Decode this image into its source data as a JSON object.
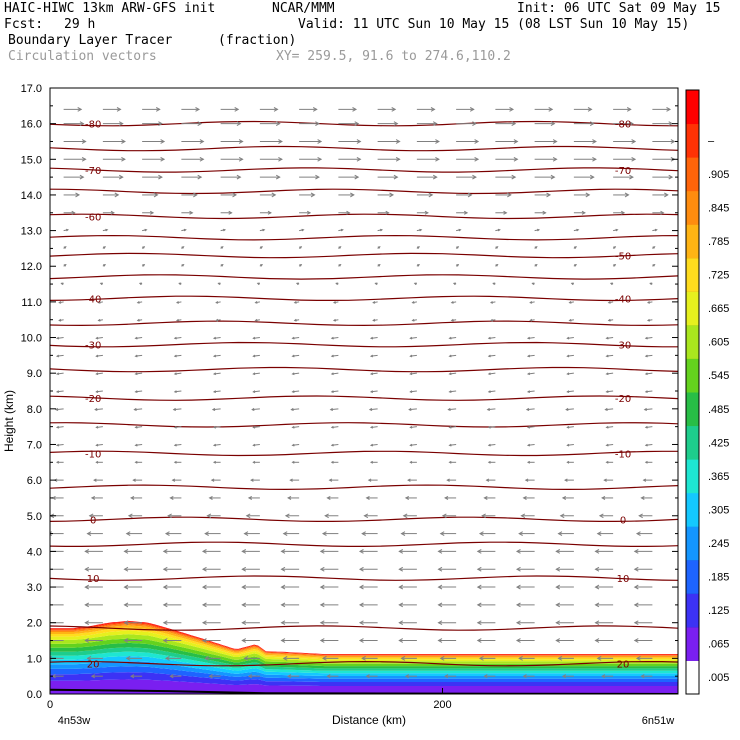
{
  "header": {
    "model": "HAIC-HIWC 13km ARW-GFS init",
    "org": "NCAR/MMM",
    "init": "Init: 06 UTC Sat 09 May 15",
    "fcst_label": "Fcst:",
    "fcst_value": "29 h",
    "valid": "Valid: 11 UTC Sun 10 May 15 (08 LST Sun 10 May 15)",
    "field": "Boundary Layer Tracer",
    "field_units": "(fraction)",
    "overlay": "Circulation vectors",
    "xy": "XY= 259.5, 91.6 to 274.6,110.2"
  },
  "chart_data": {
    "type": "heatmap",
    "title": "Boundary Layer Tracer",
    "xlabel": "Distance (km)",
    "ylabel": "Height (km)",
    "xlim": [
      0,
      320
    ],
    "ylim": [
      0,
      17
    ],
    "x_ticks": [
      0,
      200
    ],
    "x_tick_labels": [
      "0",
      "200"
    ],
    "x_end_labels": [
      "4n53w",
      "6n51w"
    ],
    "y_ticks": [
      0,
      1,
      2,
      3,
      4,
      5,
      6,
      7,
      8,
      9,
      10,
      11,
      12,
      13,
      14,
      15,
      16,
      17
    ],
    "y_tick_labels": [
      "0.0",
      "1.0",
      "2.0",
      "3.0",
      "4.0",
      "5.0",
      "6.0",
      "7.0",
      "8.0",
      "9.0",
      "10.0",
      "11.0",
      "12.0",
      "13.0",
      "14.0",
      "15.0",
      "16.0",
      "17.0"
    ],
    "colorbar": {
      "labels": [
        ".005",
        ".065",
        ".125",
        ".185",
        ".245",
        ".305",
        ".365",
        ".425",
        ".485",
        ".545",
        ".605",
        ".665",
        ".725",
        ".785",
        ".845",
        ".905",
        "–"
      ],
      "colors": [
        "#ffffff",
        "#7a1ff0",
        "#3c32f5",
        "#1e64ff",
        "#1496ff",
        "#14c8ff",
        "#1ee6d2",
        "#1ecd8c",
        "#28be46",
        "#64d21e",
        "#aae61e",
        "#e6f01e",
        "#ffdc1e",
        "#ffb414",
        "#ff8c0f",
        "#ff640a",
        "#ff3205",
        "#ff0000"
      ]
    },
    "tracer_top_km": [
      [
        0,
        1.85
      ],
      [
        12,
        1.85
      ],
      [
        20,
        1.9
      ],
      [
        30,
        2.0
      ],
      [
        40,
        2.05
      ],
      [
        50,
        2.0
      ],
      [
        60,
        1.85
      ],
      [
        75,
        1.6
      ],
      [
        95,
        1.25
      ],
      [
        105,
        1.4
      ],
      [
        110,
        1.2
      ],
      [
        120,
        1.18
      ],
      [
        140,
        1.12
      ],
      [
        320,
        1.12
      ]
    ],
    "temperature_contours": {
      "units": "C",
      "labeled": [
        {
          "value": -80,
          "height_km": 16.0,
          "labels": [
            "-80",
            "-80"
          ]
        },
        {
          "value": -70,
          "height_km": 14.7,
          "labels": [
            "-70",
            "-70"
          ]
        },
        {
          "value": -60,
          "height_km": 13.4,
          "labels": [
            "-60"
          ]
        },
        {
          "value": -50,
          "height_km": 12.3,
          "labels": [
            "-50"
          ]
        },
        {
          "value": -40,
          "height_km": 11.1,
          "labels": [
            "-40",
            "-40"
          ]
        },
        {
          "value": -30,
          "height_km": 9.8,
          "labels": [
            "-30",
            "-30"
          ]
        },
        {
          "value": -20,
          "height_km": 8.3,
          "labels": [
            "-20",
            "-20"
          ]
        },
        {
          "value": -10,
          "height_km": 6.75,
          "labels": [
            "-10",
            "-10"
          ]
        },
        {
          "value": 0,
          "height_km": 4.9,
          "labels": [
            "0",
            "0"
          ]
        },
        {
          "value": 10,
          "height_km": 3.25,
          "labels": [
            "10",
            "10"
          ]
        },
        {
          "value": 20,
          "height_km": 0.85,
          "labels": [
            "20",
            "20"
          ]
        }
      ],
      "unlabeled_heights_km": [
        15.3,
        14.1,
        12.8,
        11.7,
        10.4,
        9.1,
        7.55,
        5.8,
        4.2,
        1.85
      ]
    },
    "vector_layers": [
      {
        "height_km": 16.4,
        "u": 0.8,
        "w": 0.0
      },
      {
        "height_km": 16.0,
        "u": 0.9,
        "w": 0.0
      },
      {
        "height_km": 15.5,
        "u": 1.0,
        "w": 0.0
      },
      {
        "height_km": 15.0,
        "u": 1.0,
        "w": 0.0
      },
      {
        "height_km": 14.5,
        "u": 0.9,
        "w": 0.0
      },
      {
        "height_km": 14.0,
        "u": 0.7,
        "w": 0.0
      },
      {
        "height_km": 13.5,
        "u": 0.5,
        "w": 0.0
      },
      {
        "height_km": 13.0,
        "u": 0.2,
        "w": 0.1
      },
      {
        "height_km": 12.5,
        "u": 0.1,
        "w": 0.2
      },
      {
        "height_km": 12.0,
        "u": 0.1,
        "w": 0.2
      },
      {
        "height_km": 11.5,
        "u": -0.1,
        "w": 0.1
      },
      {
        "height_km": 11.0,
        "u": -0.2,
        "w": -0.1
      },
      {
        "height_km": 10.5,
        "u": -0.2,
        "w": -0.1
      },
      {
        "height_km": 10.0,
        "u": -0.3,
        "w": -0.1
      },
      {
        "height_km": 9.5,
        "u": -0.3,
        "w": -0.1
      },
      {
        "height_km": 9.0,
        "u": -0.3,
        "w": -0.1
      },
      {
        "height_km": 8.5,
        "u": -0.3,
        "w": -0.1
      },
      {
        "height_km": 8.0,
        "u": -0.35,
        "w": -0.1
      },
      {
        "height_km": 7.5,
        "u": -0.3,
        "w": -0.1
      },
      {
        "height_km": 7.0,
        "u": -0.3,
        "w": -0.1
      },
      {
        "height_km": 6.5,
        "u": -0.3,
        "w": 0.0
      },
      {
        "height_km": 6.0,
        "u": -0.4,
        "w": 0.0
      },
      {
        "height_km": 5.5,
        "u": -0.5,
        "w": 0.0
      },
      {
        "height_km": 5.0,
        "u": -0.6,
        "w": 0.0
      },
      {
        "height_km": 4.5,
        "u": -0.7,
        "w": 0.0
      },
      {
        "height_km": 4.0,
        "u": -0.8,
        "w": 0.0
      },
      {
        "height_km": 3.5,
        "u": -0.8,
        "w": 0.0
      },
      {
        "height_km": 3.0,
        "u": -0.8,
        "w": 0.0
      },
      {
        "height_km": 2.5,
        "u": -0.8,
        "w": 0.0
      },
      {
        "height_km": 2.0,
        "u": -0.8,
        "w": 0.0
      },
      {
        "height_km": 1.5,
        "u": -0.8,
        "w": 0.0
      },
      {
        "height_km": 1.0,
        "u": -0.7,
        "w": 0.0
      },
      {
        "height_km": 0.5,
        "u": -0.5,
        "w": 0.0
      }
    ],
    "vector_x_km": [
      10,
      30,
      50,
      70,
      90,
      110,
      130,
      150,
      170,
      190,
      210,
      230,
      250,
      270,
      290,
      310
    ],
    "colors": {
      "contour": "#7a0000",
      "vector": "#808080",
      "axis": "#000000"
    }
  }
}
